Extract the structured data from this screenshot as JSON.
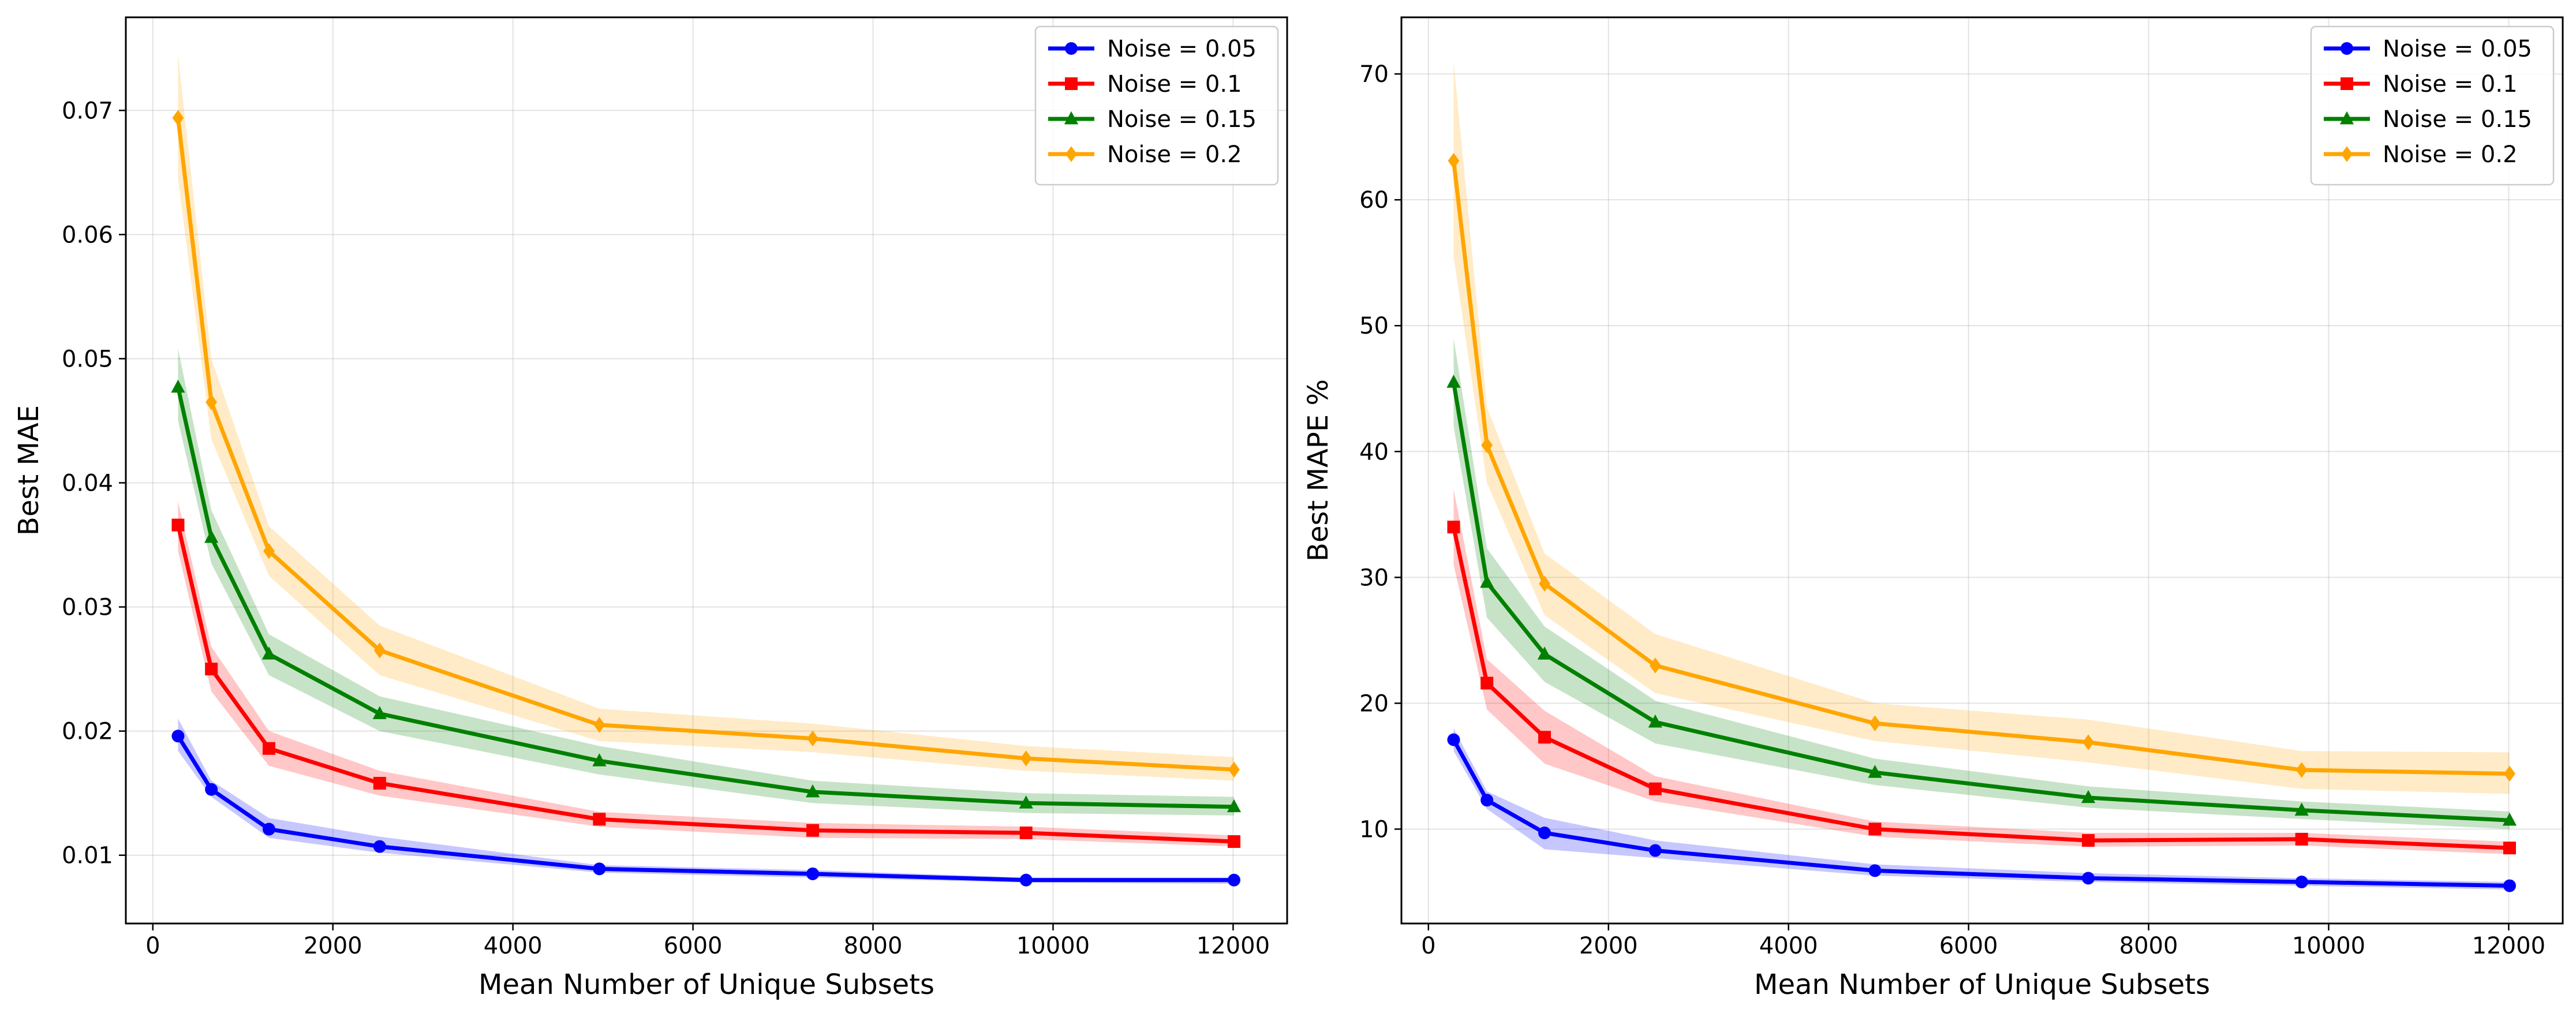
{
  "chart_data": [
    {
      "type": "line",
      "xlabel": "Mean Number of Unique Subsets",
      "ylabel": "Best MAE",
      "xlim": [
        -300,
        12600
      ],
      "ylim": [
        0.0045,
        0.0775
      ],
      "x_ticks": [
        0,
        2000,
        4000,
        6000,
        8000,
        10000,
        12000
      ],
      "x_tick_labels": [
        "0",
        "2000",
        "4000",
        "6000",
        "8000",
        "10000",
        "12000"
      ],
      "y_ticks": [
        0.01,
        0.02,
        0.03,
        0.04,
        0.05,
        0.06,
        0.07
      ],
      "y_tick_labels": [
        "0.01",
        "0.02",
        "0.03",
        "0.04",
        "0.05",
        "0.06",
        "0.07"
      ],
      "grid": true,
      "legend_position": "top-right",
      "x": [
        280,
        650,
        1290,
        2520,
        4960,
        7330,
        9700,
        12010
      ],
      "series": [
        {
          "name": "Noise = 0.05",
          "color": "#0000ff",
          "marker": "circle",
          "values": [
            0.0196,
            0.0153,
            0.0121,
            0.0107,
            0.0089,
            0.0085,
            0.008,
            0.008
          ],
          "lower": [
            0.0184,
            0.0147,
            0.0114,
            0.0102,
            0.0086,
            0.0082,
            0.0078,
            0.0077
          ],
          "upper": [
            0.021,
            0.016,
            0.013,
            0.0115,
            0.0092,
            0.0088,
            0.0082,
            0.0082
          ]
        },
        {
          "name": "Noise = 0.1",
          "color": "#ff0000",
          "marker": "square",
          "values": [
            0.0366,
            0.025,
            0.0186,
            0.0158,
            0.0129,
            0.012,
            0.0118,
            0.0111
          ],
          "lower": [
            0.0345,
            0.0232,
            0.0172,
            0.0148,
            0.0123,
            0.0114,
            0.0113,
            0.0107
          ],
          "upper": [
            0.0385,
            0.0268,
            0.02,
            0.0168,
            0.0135,
            0.0126,
            0.0123,
            0.0116
          ]
        },
        {
          "name": "Noise = 0.15",
          "color": "#008000",
          "marker": "triangle",
          "values": [
            0.0477,
            0.0356,
            0.0262,
            0.0214,
            0.0176,
            0.0151,
            0.0142,
            0.0139
          ],
          "lower": [
            0.045,
            0.0335,
            0.0245,
            0.02,
            0.0165,
            0.0142,
            0.0134,
            0.0132
          ],
          "upper": [
            0.0508,
            0.0378,
            0.0278,
            0.0228,
            0.0188,
            0.016,
            0.015,
            0.0147
          ]
        },
        {
          "name": "Noise = 0.2",
          "color": "#ffa500",
          "marker": "diamond",
          "values": [
            0.0694,
            0.0465,
            0.0345,
            0.0265,
            0.0205,
            0.0194,
            0.0178,
            0.0169
          ],
          "lower": [
            0.0645,
            0.0435,
            0.0325,
            0.0245,
            0.0192,
            0.0183,
            0.0168,
            0.016
          ],
          "upper": [
            0.0745,
            0.05,
            0.0365,
            0.0285,
            0.0218,
            0.0206,
            0.0188,
            0.0179
          ]
        }
      ]
    },
    {
      "type": "line",
      "xlabel": "Mean Number of Unique Subsets",
      "ylabel": "Best MAPE %",
      "xlim": [
        -300,
        12600
      ],
      "ylim": [
        2.5,
        74.5
      ],
      "x_ticks": [
        0,
        2000,
        4000,
        6000,
        8000,
        10000,
        12000
      ],
      "x_tick_labels": [
        "0",
        "2000",
        "4000",
        "6000",
        "8000",
        "10000",
        "12000"
      ],
      "y_ticks": [
        10,
        20,
        30,
        40,
        50,
        60,
        70
      ],
      "y_tick_labels": [
        "10",
        "20",
        "30",
        "40",
        "50",
        "60",
        "70"
      ],
      "grid": true,
      "legend_position": "top-right",
      "x": [
        280,
        650,
        1290,
        2520,
        4960,
        7330,
        9700,
        12010
      ],
      "series": [
        {
          "name": "Noise = 0.05",
          "color": "#0000ff",
          "marker": "circle",
          "values": [
            17.1,
            12.3,
            9.7,
            8.3,
            6.7,
            6.1,
            5.8,
            5.5
          ],
          "lower": [
            16.2,
            11.6,
            8.4,
            7.7,
            6.3,
            5.8,
            5.5,
            5.2
          ],
          "upper": [
            18.0,
            13.0,
            10.9,
            9.1,
            7.2,
            6.5,
            6.1,
            5.8
          ]
        },
        {
          "name": "Noise = 0.1",
          "color": "#ff0000",
          "marker": "square",
          "values": [
            34.0,
            21.6,
            17.3,
            13.2,
            10.0,
            9.1,
            9.2,
            8.5
          ],
          "lower": [
            31.0,
            19.5,
            15.2,
            12.2,
            9.4,
            8.6,
            8.7,
            8.0
          ],
          "upper": [
            37.0,
            23.5,
            19.4,
            14.2,
            10.6,
            9.7,
            9.7,
            9.0
          ]
        },
        {
          "name": "Noise = 0.15",
          "color": "#008000",
          "marker": "triangle",
          "values": [
            45.5,
            29.6,
            23.9,
            18.5,
            14.5,
            12.5,
            11.5,
            10.7
          ],
          "lower": [
            42.0,
            26.8,
            21.7,
            16.8,
            13.5,
            11.7,
            10.8,
            10.0
          ],
          "upper": [
            49.0,
            32.3,
            26.1,
            20.2,
            15.6,
            13.4,
            12.2,
            11.4
          ]
        },
        {
          "name": "Noise = 0.2",
          "color": "#ffa500",
          "marker": "diamond",
          "values": [
            63.1,
            40.5,
            29.5,
            23.0,
            18.4,
            16.9,
            14.7,
            14.4
          ],
          "lower": [
            55.5,
            37.5,
            27.0,
            20.8,
            17.0,
            15.3,
            13.2,
            12.8
          ],
          "upper": [
            71.0,
            43.5,
            31.9,
            25.5,
            20.0,
            18.7,
            16.2,
            16.1
          ]
        }
      ]
    }
  ]
}
